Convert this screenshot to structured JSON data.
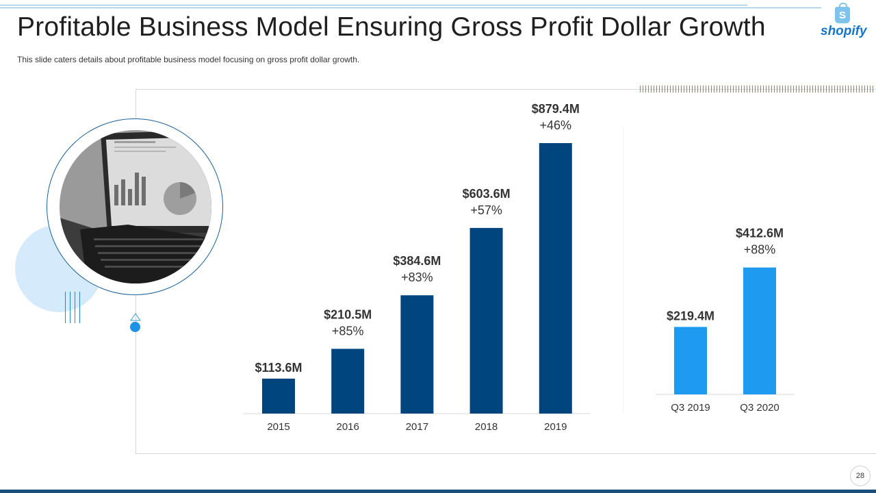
{
  "slide": {
    "title": "Profitable Business Model Ensuring Gross Profit Dollar Growth",
    "subtitle": "This slide caters details about profitable business model focusing on gross profit dollar growth.",
    "page_number": "28",
    "logo_text": "shopify",
    "logo_mark": "S"
  },
  "colors": {
    "annual_bar": "#00457e",
    "quarter_bar": "#1e9af0",
    "baseline": "#d9d9d9",
    "label_text": "#333333"
  },
  "chart_data": [
    {
      "type": "bar",
      "name": "annual",
      "categories": [
        "2015",
        "2016",
        "2017",
        "2018",
        "2019"
      ],
      "values": [
        113.6,
        210.5,
        384.6,
        603.6,
        879.4
      ],
      "value_labels": [
        "$113.6M",
        "$210.5M",
        "$384.6M",
        "$603.6M",
        "$879.4M"
      ],
      "growth_labels": [
        "",
        "+85%",
        "+83%",
        "+57%",
        "+46%"
      ],
      "unit": "$M",
      "title": "",
      "xlabel": "",
      "ylabel": "",
      "grid": false,
      "legend": "none"
    },
    {
      "type": "bar",
      "name": "quarterly",
      "categories": [
        "Q3 2019",
        "Q3 2020"
      ],
      "values": [
        219.4,
        412.6
      ],
      "value_labels": [
        "$219.4M",
        "$412.6M"
      ],
      "growth_labels": [
        "",
        "+88%"
      ],
      "unit": "$M",
      "title": "",
      "xlabel": "",
      "ylabel": "",
      "grid": false,
      "legend": "none"
    }
  ]
}
